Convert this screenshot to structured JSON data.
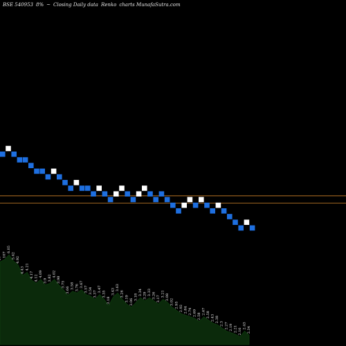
{
  "header": {
    "symbol": "BSE 540953",
    "change": "8%",
    "sep": "~",
    "title": "Closing Daily data",
    "kind": "Renko",
    "site": "charts MunafaSutra.com"
  },
  "chart_data": {
    "type": "renko",
    "colors": {
      "background": "#000000",
      "up_brick": "#ffffff",
      "down_brick": "#1e6fe0",
      "hline": "#d4862a",
      "area_fill": "#0b2a0b",
      "area_line": "#0e3d0e"
    },
    "bricks": [
      {
        "i": 0,
        "level": 0,
        "dir": "down"
      },
      {
        "i": 1,
        "level": 1,
        "dir": "up"
      },
      {
        "i": 2,
        "level": 0,
        "dir": "down"
      },
      {
        "i": 3,
        "level": -1,
        "dir": "down"
      },
      {
        "i": 4,
        "level": -1,
        "dir": "down"
      },
      {
        "i": 5,
        "level": -2,
        "dir": "down"
      },
      {
        "i": 6,
        "level": -3,
        "dir": "down"
      },
      {
        "i": 7,
        "level": -3,
        "dir": "down"
      },
      {
        "i": 8,
        "level": -4,
        "dir": "down"
      },
      {
        "i": 9,
        "level": -3,
        "dir": "up"
      },
      {
        "i": 10,
        "level": -4,
        "dir": "down"
      },
      {
        "i": 11,
        "level": -5,
        "dir": "down"
      },
      {
        "i": 12,
        "level": -6,
        "dir": "down"
      },
      {
        "i": 13,
        "level": -5,
        "dir": "up"
      },
      {
        "i": 14,
        "level": -6,
        "dir": "down"
      },
      {
        "i": 15,
        "level": -6,
        "dir": "down"
      },
      {
        "i": 16,
        "level": -7,
        "dir": "down"
      },
      {
        "i": 17,
        "level": -6,
        "dir": "up"
      },
      {
        "i": 18,
        "level": -7,
        "dir": "down"
      },
      {
        "i": 19,
        "level": -8,
        "dir": "down"
      },
      {
        "i": 20,
        "level": -7,
        "dir": "up"
      },
      {
        "i": 21,
        "level": -6,
        "dir": "up"
      },
      {
        "i": 22,
        "level": -7,
        "dir": "down"
      },
      {
        "i": 23,
        "level": -8,
        "dir": "down"
      },
      {
        "i": 24,
        "level": -7,
        "dir": "up"
      },
      {
        "i": 25,
        "level": -6,
        "dir": "up"
      },
      {
        "i": 26,
        "level": -7,
        "dir": "down"
      },
      {
        "i": 27,
        "level": -8,
        "dir": "down"
      },
      {
        "i": 28,
        "level": -7,
        "dir": "down"
      },
      {
        "i": 29,
        "level": -8,
        "dir": "down"
      },
      {
        "i": 30,
        "level": -9,
        "dir": "down"
      },
      {
        "i": 31,
        "level": -10,
        "dir": "down"
      },
      {
        "i": 32,
        "level": -9,
        "dir": "up"
      },
      {
        "i": 33,
        "level": -8,
        "dir": "up"
      },
      {
        "i": 34,
        "level": -9,
        "dir": "down"
      },
      {
        "i": 35,
        "level": -8,
        "dir": "up"
      },
      {
        "i": 36,
        "level": -9,
        "dir": "down"
      },
      {
        "i": 37,
        "level": -10,
        "dir": "down"
      },
      {
        "i": 38,
        "level": -9,
        "dir": "up"
      },
      {
        "i": 39,
        "level": -10,
        "dir": "down"
      },
      {
        "i": 40,
        "level": -11,
        "dir": "down"
      },
      {
        "i": 41,
        "level": -12,
        "dir": "down"
      },
      {
        "i": 42,
        "level": -13,
        "dir": "down"
      },
      {
        "i": 43,
        "level": -12,
        "dir": "up"
      },
      {
        "i": 44,
        "level": -13,
        "dir": "down"
      }
    ],
    "hlines": [
      {
        "level": -7.3
      },
      {
        "level": -8.6
      }
    ],
    "volume_labels": [
      {
        "i": 0,
        "v": 97,
        "text": "97"
      },
      {
        "i": 1,
        "v": 100,
        "text": "107"
      },
      {
        "i": 2,
        "v": 106,
        "text": "6.05"
      },
      {
        "i": 3,
        "v": 98,
        "text": "5.42"
      },
      {
        "i": 4,
        "v": 93,
        "text": "4.92"
      },
      {
        "i": 5,
        "v": 80,
        "text": "4.43"
      },
      {
        "i": 6,
        "v": 84,
        "text": "4.21"
      },
      {
        "i": 7,
        "v": 74,
        "text": "4.17"
      },
      {
        "i": 8,
        "v": 70,
        "text": "4.12"
      },
      {
        "i": 9,
        "v": 75,
        "text": "4.09"
      },
      {
        "i": 10,
        "v": 68,
        "text": "3.9"
      },
      {
        "i": 11,
        "v": 70,
        "text": "3.82"
      },
      {
        "i": 12,
        "v": 75,
        "text": "4.02"
      },
      {
        "i": 13,
        "v": 68,
        "text": "3.98"
      },
      {
        "i": 14,
        "v": 62,
        "text": "3.75"
      },
      {
        "i": 15,
        "v": 55,
        "text": "3.66"
      },
      {
        "i": 16,
        "v": 60,
        "text": "3.58"
      },
      {
        "i": 17,
        "v": 58,
        "text": "3.76"
      },
      {
        "i": 18,
        "v": 62,
        "text": "3.67"
      },
      {
        "i": 19,
        "v": 56,
        "text": "3.57"
      },
      {
        "i": 20,
        "v": 54,
        "text": "3.54"
      },
      {
        "i": 21,
        "v": 50,
        "text": "3.37"
      },
      {
        "i": 22,
        "v": 56,
        "text": "3.47"
      },
      {
        "i": 23,
        "v": 50,
        "text": "3.35"
      },
      {
        "i": 24,
        "v": 42,
        "text": "3.18"
      },
      {
        "i": 25,
        "v": 53,
        "text": "3.43"
      },
      {
        "i": 26,
        "v": 58,
        "text": "3.63"
      },
      {
        "i": 27,
        "v": 50,
        "text": "3.26"
      },
      {
        "i": 28,
        "v": 44,
        "text": "3.19"
      },
      {
        "i": 29,
        "v": 40,
        "text": "3.06"
      },
      {
        "i": 30,
        "v": 46,
        "text": "3.18"
      },
      {
        "i": 31,
        "v": 52,
        "text": "3.34"
      },
      {
        "i": 32,
        "v": 48,
        "text": "3.29"
      },
      {
        "i": 33,
        "v": 52,
        "text": "3.33"
      },
      {
        "i": 34,
        "v": 48,
        "text": "3.26"
      },
      {
        "i": 35,
        "v": 44,
        "text": "3.17"
      },
      {
        "i": 36,
        "v": 50,
        "text": "3.21"
      },
      {
        "i": 37,
        "v": 46,
        "text": "3.08"
      },
      {
        "i": 38,
        "v": 40,
        "text": "3.02"
      },
      {
        "i": 39,
        "v": 36,
        "text": "2.95"
      },
      {
        "i": 40,
        "v": 32,
        "text": "2.92"
      },
      {
        "i": 41,
        "v": 30,
        "text": "2.84"
      },
      {
        "i": 42,
        "v": 28,
        "text": "2.74"
      },
      {
        "i": 43,
        "v": 26,
        "text": "2.69"
      },
      {
        "i": 44,
        "v": 22,
        "text": "2.58"
      },
      {
        "i": 45,
        "v": 28,
        "text": "2.67"
      },
      {
        "i": 46,
        "v": 24,
        "text": "2.58"
      },
      {
        "i": 47,
        "v": 20,
        "text": "2.43"
      },
      {
        "i": 48,
        "v": 18,
        "text": "2.38"
      },
      {
        "i": 49,
        "v": 14,
        "text": "2.3"
      },
      {
        "i": 50,
        "v": 10,
        "text": "2.27"
      },
      {
        "i": 51,
        "v": 8,
        "text": "2.19"
      },
      {
        "i": 52,
        "v": 6,
        "text": "2.21"
      },
      {
        "i": 53,
        "v": 3,
        "text": "2.16"
      },
      {
        "i": 54,
        "v": 10,
        "text": "2.43"
      },
      {
        "i": 55,
        "v": 5,
        "text": "2.34"
      }
    ]
  }
}
